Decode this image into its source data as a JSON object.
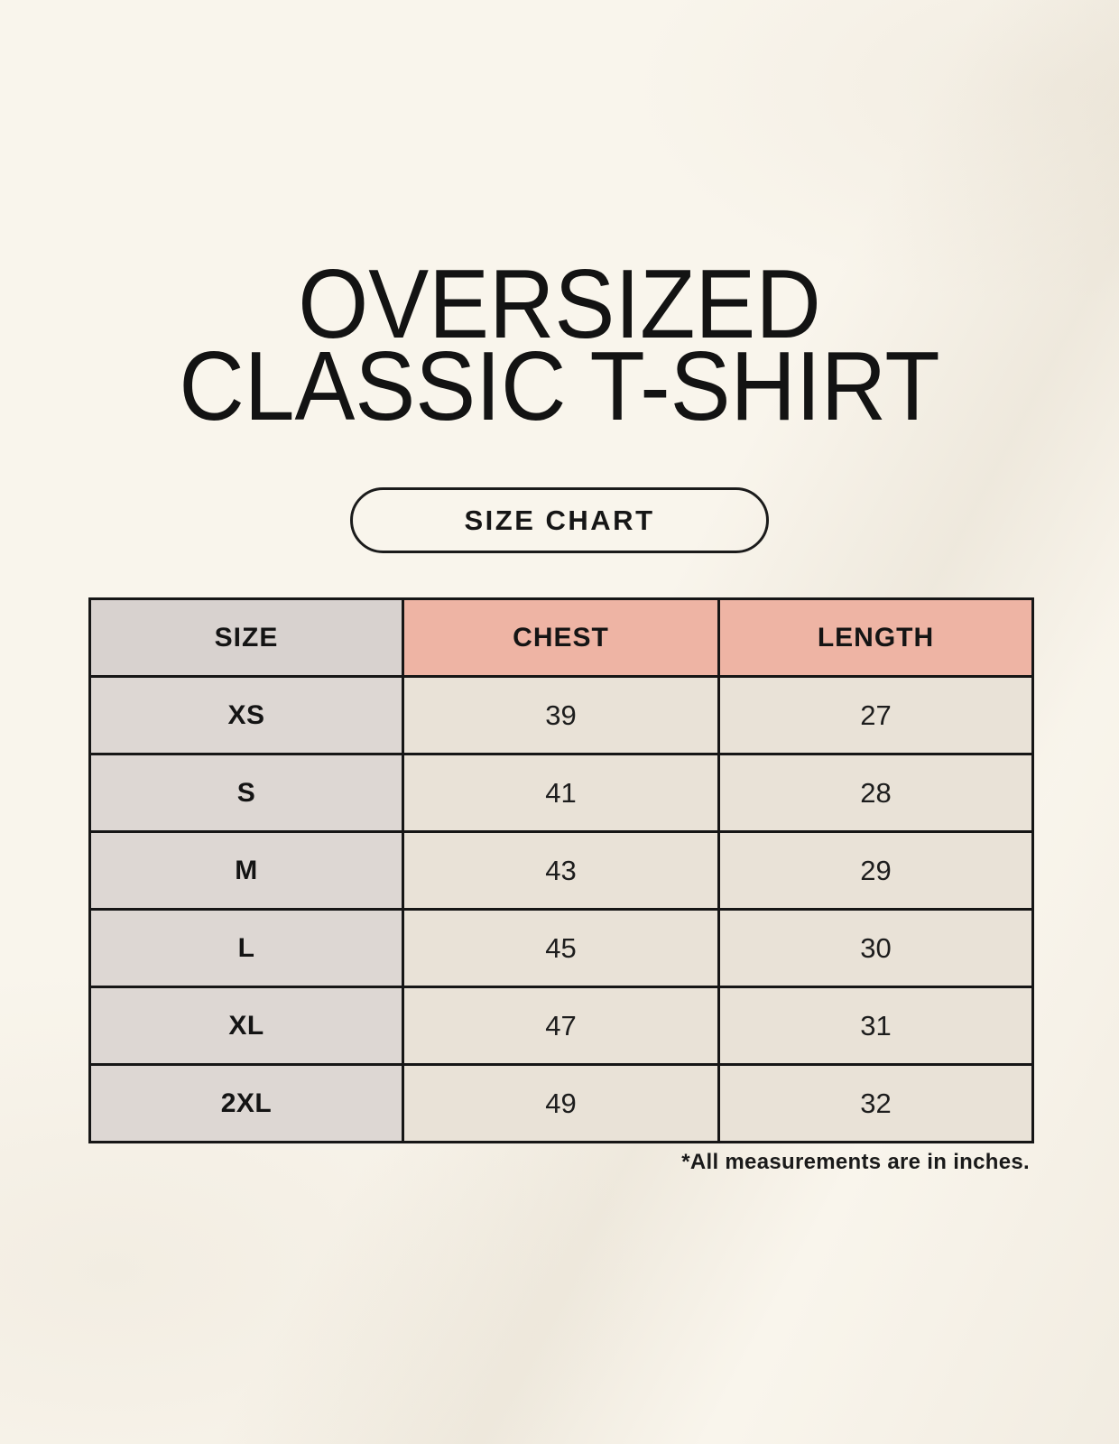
{
  "header": {
    "title_line1": "OVERSIZED",
    "title_line2": "CLASSIC T-SHIRT",
    "size_chart_button_label": "SIZE CHART"
  },
  "table": {
    "columns": [
      "SIZE",
      "CHEST",
      "LENGTH"
    ],
    "rows": [
      {
        "size": "XS",
        "chest": "39",
        "length": "27"
      },
      {
        "size": "S",
        "chest": "41",
        "length": "28"
      },
      {
        "size": "M",
        "chest": "43",
        "length": "29"
      },
      {
        "size": "L",
        "chest": "45",
        "length": "30"
      },
      {
        "size": "XL",
        "chest": "47",
        "length": "31"
      },
      {
        "size": "2XL",
        "chest": "49",
        "length": "32"
      }
    ]
  },
  "footnote": "*All measurements are in inches.",
  "colors": {
    "page_background": "#f9f5ec",
    "header_size_bg": "#d8d2cf",
    "header_accent_bg": "#eeb4a4",
    "row_label_bg": "#ddd7d3",
    "row_value_bg": "#e9e2d7",
    "table_border": "#161616",
    "text": "#131313"
  },
  "chart_data": {
    "type": "table",
    "title": "OVERSIZED CLASSIC T-SHIRT",
    "subtitle": "SIZE CHART",
    "columns": [
      "SIZE",
      "CHEST",
      "LENGTH"
    ],
    "rows": [
      [
        "XS",
        39,
        27
      ],
      [
        "S",
        41,
        28
      ],
      [
        "M",
        43,
        29
      ],
      [
        "L",
        45,
        30
      ],
      [
        "XL",
        47,
        31
      ],
      [
        "2XL",
        49,
        32
      ]
    ],
    "units": "inches",
    "note": "*All measurements are in inches."
  }
}
